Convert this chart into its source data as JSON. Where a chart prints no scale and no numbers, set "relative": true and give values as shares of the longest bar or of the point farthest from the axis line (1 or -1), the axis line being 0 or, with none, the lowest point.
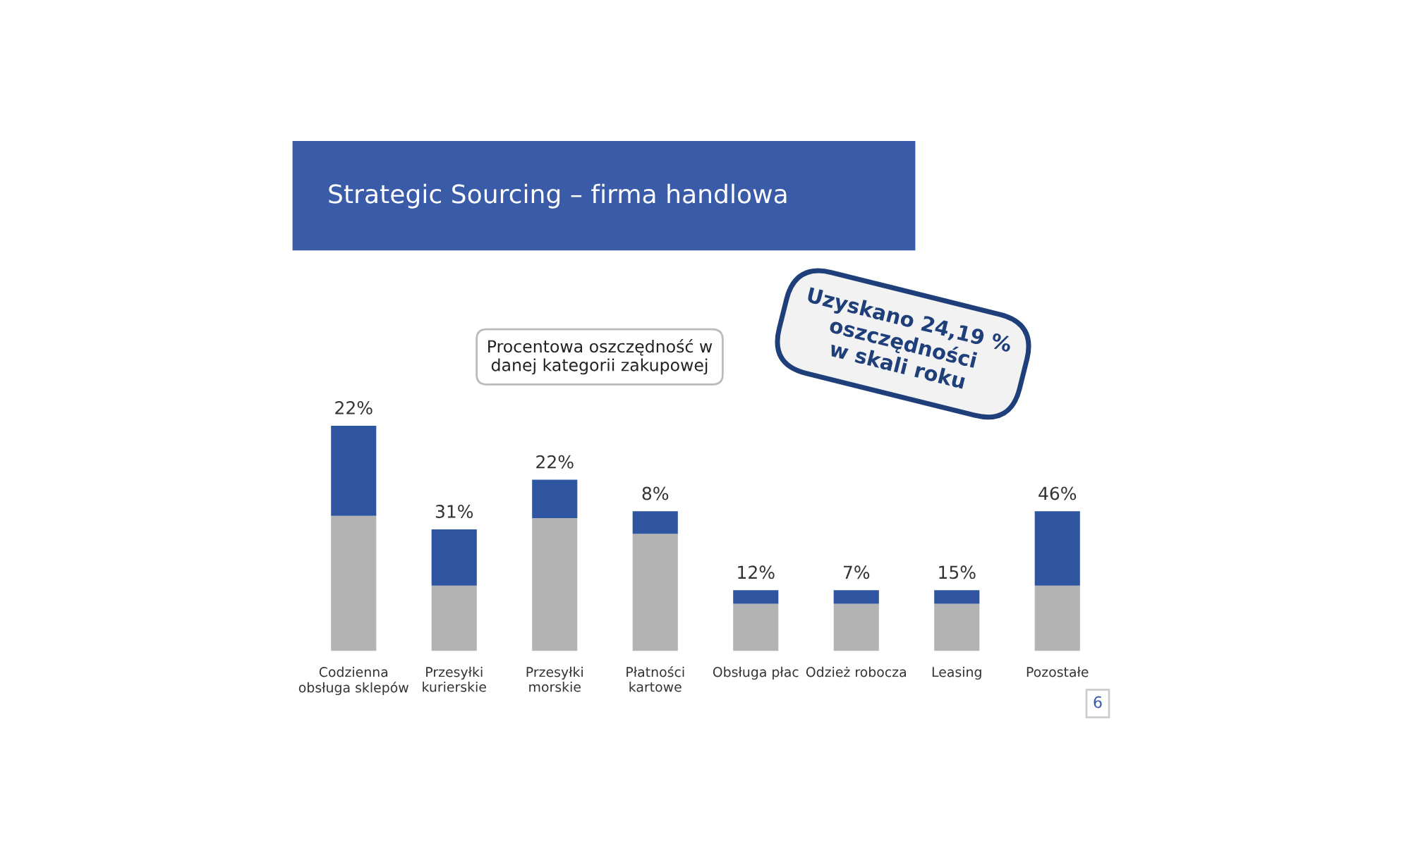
{
  "chart_data": {
    "type": "bar",
    "title": "Strategic Sourcing – firma handlowa",
    "categories": [
      "Codzienna\nobsługa sklepów",
      "Przesyłki\nkurierskie",
      "Przesyłki\nmorskie",
      "Płatności\nkartowe",
      "Obsługa płac",
      "Odzież robocza",
      "Leasing",
      "Pozostałe"
    ],
    "stacked": true,
    "relative": true,
    "legend": false,
    "grid": false,
    "series": [
      {
        "color": "#b3b3b3",
        "values": [
          0.6,
          0.29,
          0.59,
          0.52,
          0.21,
          0.21,
          0.21,
          0.29
        ]
      },
      {
        "color": "#2f54a0",
        "values": [
          0.4,
          0.25,
          0.17,
          0.1,
          0.06,
          0.06,
          0.06,
          0.33
        ]
      }
    ],
    "annotations": [
      "Procentowa oszczędność w\ndanej kategorii zakupowej",
      "Uzyskano 24,19 %\noszczędności\nw skali roku",
      "6",
      {
        "text": "22%",
        "x": "Codzienna\nobsługa sklepów",
        "y": 1.0
      },
      {
        "text": "31%",
        "x": "Przesyłki\nkurierskie",
        "y": 0.54
      },
      {
        "text": "22%",
        "x": "Przesyłki\nmorskie",
        "y": 0.76
      },
      {
        "text": "8%",
        "x": "Płatności\nkartowe",
        "y": 0.62
      },
      {
        "text": "12%",
        "x": "Obsługa płac",
        "y": 0.27
      },
      {
        "text": "7%",
        "x": "Odzież robocza",
        "y": 0.27
      },
      {
        "text": "15%",
        "x": "Leasing",
        "y": 0.27
      },
      {
        "text": "46%",
        "x": "Pozostałe",
        "y": 0.62
      }
    ]
  }
}
